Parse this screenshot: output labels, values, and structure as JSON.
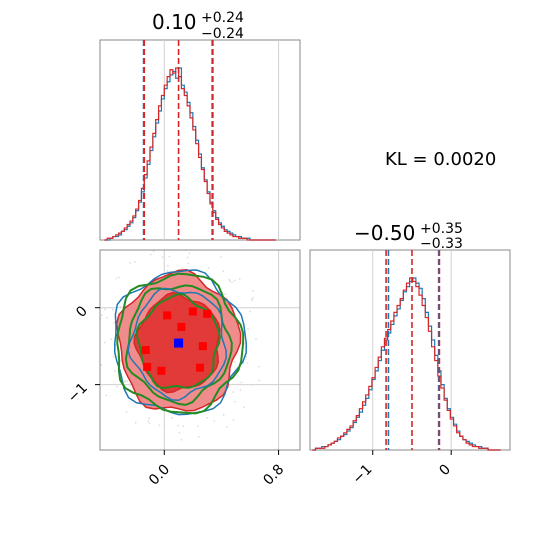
{
  "chart_data": [
    {
      "type": "histogram",
      "panel": "marginal-x",
      "title": {
        "main": "0.10",
        "sup": "+0.24",
        "sub": "−0.24"
      },
      "xlim": [
        -0.45,
        0.95
      ],
      "bins_x": [
        -0.41,
        -0.39,
        -0.37,
        -0.35,
        -0.33,
        -0.31,
        -0.29,
        -0.27,
        -0.25,
        -0.23,
        -0.21,
        -0.19,
        -0.17,
        -0.15,
        -0.13,
        -0.11,
        -0.09,
        -0.07,
        -0.05,
        -0.03,
        -0.01,
        0.01,
        0.03,
        0.05,
        0.07,
        0.09,
        0.11,
        0.13,
        0.15,
        0.17,
        0.19,
        0.21,
        0.23,
        0.25,
        0.27,
        0.29,
        0.31,
        0.33,
        0.35,
        0.37,
        0.39,
        0.41,
        0.43,
        0.45,
        0.47,
        0.49,
        0.51,
        0.53,
        0.55,
        0.57,
        0.59,
        0.61,
        0.63,
        0.65,
        0.67,
        0.69,
        0.71,
        0.73,
        0.75,
        0.77
      ],
      "series": [
        {
          "color": "#1f77b4",
          "values": [
            0,
            0,
            1,
            2,
            2,
            3,
            5,
            6,
            8,
            10,
            13,
            17,
            22,
            28,
            36,
            44,
            52,
            60,
            68,
            75,
            82,
            88,
            92,
            96,
            98,
            94,
            100,
            90,
            86,
            80,
            74,
            66,
            58,
            50,
            42,
            35,
            28,
            22,
            17,
            13,
            10,
            8,
            6,
            5,
            4,
            3,
            2,
            2,
            1,
            1,
            1,
            0,
            0,
            0,
            0,
            0,
            0,
            0,
            0,
            0
          ]
        },
        {
          "color": "#d62728",
          "values": [
            0,
            1,
            1,
            2,
            3,
            4,
            5,
            7,
            9,
            11,
            14,
            18,
            23,
            30,
            38,
            46,
            54,
            62,
            70,
            78,
            84,
            90,
            95,
            99,
            97,
            100,
            95,
            88,
            84,
            78,
            71,
            64,
            56,
            48,
            41,
            34,
            27,
            21,
            16,
            12,
            9,
            7,
            5,
            4,
            3,
            2,
            2,
            1,
            1,
            1,
            0,
            0,
            0,
            0,
            0,
            0,
            0,
            0,
            0,
            0
          ]
        }
      ],
      "vlines": {
        "red": [
          -0.14,
          0.1,
          0.34
        ],
        "blue": [
          -0.145,
          0.335
        ]
      }
    },
    {
      "type": "contour",
      "panel": "joint",
      "xlim": [
        -0.45,
        0.95
      ],
      "ylim": [
        -1.85,
        0.75
      ],
      "x_ticks": [
        "0.0",
        "0.8"
      ],
      "y_ticks": [
        "0",
        "−1"
      ],
      "centers": {
        "truth_square": {
          "x": 0.1,
          "y": -0.46,
          "color": "#0000ff"
        },
        "red_points": [
          [
            -0.13,
            -0.55
          ],
          [
            0.02,
            -0.1
          ],
          [
            0.12,
            -0.25
          ],
          [
            0.2,
            -0.05
          ],
          [
            0.27,
            -0.5
          ],
          [
            -0.02,
            -0.82
          ],
          [
            0.25,
            -0.78
          ],
          [
            -0.12,
            -0.77
          ],
          [
            0.3,
            -0.08
          ]
        ]
      },
      "contour_levels": [
        {
          "color": "#d62728",
          "fill": "#f08080",
          "rx": 0.42,
          "ry": 0.9
        },
        {
          "color": "#1f77b4",
          "rx": 0.46,
          "ry": 0.93
        },
        {
          "color": "#228b22",
          "rx": 0.44,
          "ry": 0.9
        },
        {
          "color": "#228b22",
          "rx": 0.36,
          "ry": 0.76
        },
        {
          "color": "#1f77b4",
          "rx": 0.33,
          "ry": 0.7
        },
        {
          "color": "#d62728",
          "fill": "#e03030",
          "rx": 0.29,
          "ry": 0.62
        },
        {
          "color": "#228b22",
          "rx": 0.28,
          "ry": 0.6
        }
      ],
      "center": {
        "x": 0.1,
        "y": -0.46
      }
    },
    {
      "type": "histogram",
      "panel": "marginal-y",
      "title": {
        "main": "−0.50",
        "sup": "+0.35",
        "sub": "−0.33"
      },
      "xlim": [
        -1.8,
        0.75
      ],
      "x_ticks": [
        "−1",
        "0"
      ],
      "bins_x": [
        -1.75,
        -1.71,
        -1.67,
        -1.63,
        -1.59,
        -1.55,
        -1.51,
        -1.47,
        -1.43,
        -1.39,
        -1.35,
        -1.31,
        -1.27,
        -1.23,
        -1.19,
        -1.15,
        -1.11,
        -1.07,
        -1.03,
        -0.99,
        -0.95,
        -0.91,
        -0.87,
        -0.83,
        -0.79,
        -0.75,
        -0.71,
        -0.67,
        -0.63,
        -0.59,
        -0.55,
        -0.51,
        -0.47,
        -0.43,
        -0.39,
        -0.35,
        -0.31,
        -0.27,
        -0.23,
        -0.19,
        -0.15,
        -0.11,
        -0.07,
        -0.03,
        0.01,
        0.05,
        0.09,
        0.13,
        0.17,
        0.21,
        0.25,
        0.29,
        0.33,
        0.37,
        0.41,
        0.45,
        0.49,
        0.53,
        0.57,
        0.61
      ],
      "series": [
        {
          "color": "#1f77b4",
          "values": [
            0,
            1,
            1,
            2,
            2,
            3,
            4,
            5,
            6,
            8,
            9,
            11,
            13,
            16,
            19,
            22,
            26,
            30,
            35,
            41,
            46,
            52,
            58,
            64,
            68,
            73,
            78,
            82,
            87,
            92,
            95,
            98,
            100,
            97,
            94,
            88,
            80,
            72,
            64,
            55,
            46,
            38,
            30,
            24,
            19,
            15,
            11,
            8,
            6,
            5,
            4,
            3,
            2,
            2,
            1,
            1,
            0,
            0,
            0,
            0
          ]
        },
        {
          "color": "#d62728",
          "values": [
            0,
            1,
            1,
            1,
            2,
            3,
            4,
            5,
            7,
            8,
            10,
            12,
            14,
            17,
            20,
            24,
            28,
            32,
            37,
            42,
            48,
            54,
            60,
            65,
            70,
            75,
            80,
            84,
            88,
            93,
            97,
            100,
            98,
            95,
            90,
            84,
            77,
            69,
            60,
            52,
            43,
            36,
            29,
            23,
            18,
            14,
            10,
            8,
            6,
            4,
            3,
            2,
            2,
            1,
            1,
            1,
            0,
            0,
            0,
            0
          ]
        }
      ],
      "vlines": {
        "red": [
          -0.83,
          -0.5,
          -0.15
        ],
        "blue": [
          -0.8,
          -0.16
        ]
      }
    }
  ],
  "annotation": "KL = 0.0020"
}
